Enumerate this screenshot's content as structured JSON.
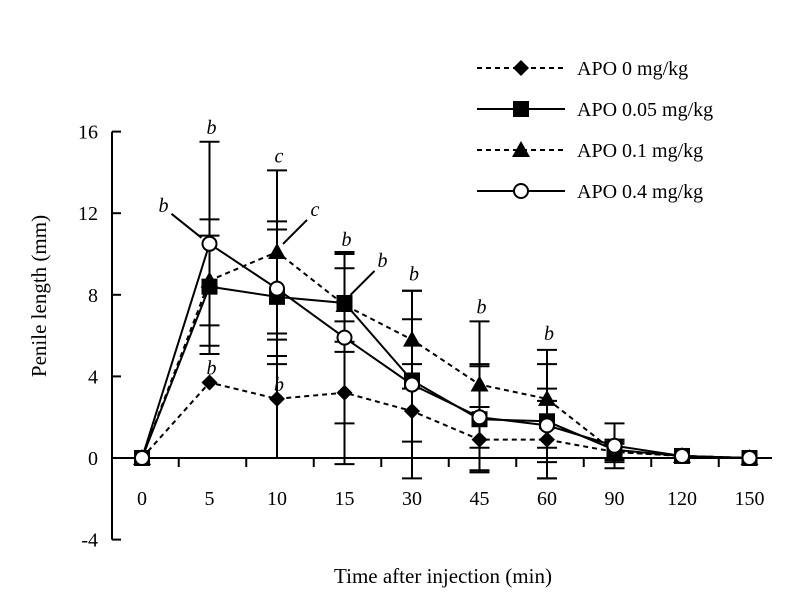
{
  "chart_data": {
    "type": "line",
    "title": "",
    "xlabel": "Time after injection (min)",
    "ylabel": "Penile length (mm)",
    "categories": [
      "0",
      "5",
      "10",
      "15",
      "30",
      "45",
      "60",
      "90",
      "120",
      "150"
    ],
    "ylim": [
      -4,
      16
    ],
    "yticks": [
      "-4",
      "0",
      "4",
      "8",
      "12",
      "16"
    ],
    "grid": false,
    "legend_position": "top-right",
    "series": [
      {
        "name": "APO 0 mg/kg",
        "line": "dotted",
        "marker": "diamond",
        "values": [
          0,
          3.7,
          2.9,
          3.2,
          2.3,
          0.9,
          0.9,
          0.3,
          0.1,
          0
        ],
        "errors": [
          0,
          0,
          2.9,
          3.5,
          2.3,
          1.6,
          1.9,
          0.4,
          0,
          0
        ]
      },
      {
        "name": "APO 0.05 mg/kg",
        "line": "solid",
        "marker": "square",
        "values": [
          0,
          8.4,
          7.9,
          7.6,
          3.8,
          1.9,
          1.8,
          0.4,
          0.1,
          0
        ],
        "errors": [
          0,
          3.3,
          3.3,
          2.4,
          3.0,
          2.6,
          2.8,
          0.5,
          0,
          0
        ]
      },
      {
        "name": "APO 0.1 mg/kg",
        "line": "dotted",
        "marker": "triangle",
        "values": [
          0,
          8.7,
          10.1,
          7.5,
          5.8,
          3.6,
          2.9,
          0.3,
          0.1,
          0
        ],
        "errors": [
          0,
          2.2,
          4.0,
          1.8,
          2.4,
          3.1,
          2.4,
          0.5,
          0,
          0
        ]
      },
      {
        "name": "APO 0.4 mg/kg",
        "line": "solid",
        "marker": "circle",
        "values": [
          0,
          10.5,
          8.3,
          5.9,
          3.6,
          2.0,
          1.6,
          0.6,
          0.1,
          0
        ],
        "errors": [
          0,
          5.0,
          3.3,
          4.2,
          4.6,
          2.6,
          1.8,
          1.1,
          0,
          0
        ]
      }
    ],
    "annotations": [
      {
        "text": "b",
        "category": "5",
        "value": 15.5
      },
      {
        "text": "c",
        "category": "10",
        "value": 14.1
      },
      {
        "text": "b",
        "category": "15",
        "value": 10.0
      },
      {
        "text": "b",
        "category": "30",
        "value": 8.3
      },
      {
        "text": "b",
        "category": "45",
        "value": 6.7
      },
      {
        "text": "b",
        "category": "60",
        "value": 5.4
      },
      {
        "text": "b",
        "category": "5",
        "value": 3.7
      },
      {
        "text": "b",
        "category": "10",
        "value": 2.9
      },
      {
        "text": "b",
        "category": "5",
        "value": 10.5,
        "callout": "left"
      },
      {
        "text": "c",
        "category": "10",
        "value": 10.1,
        "callout": "right"
      },
      {
        "text": "b",
        "category": "15",
        "value": 7.6,
        "callout": "right"
      }
    ]
  }
}
